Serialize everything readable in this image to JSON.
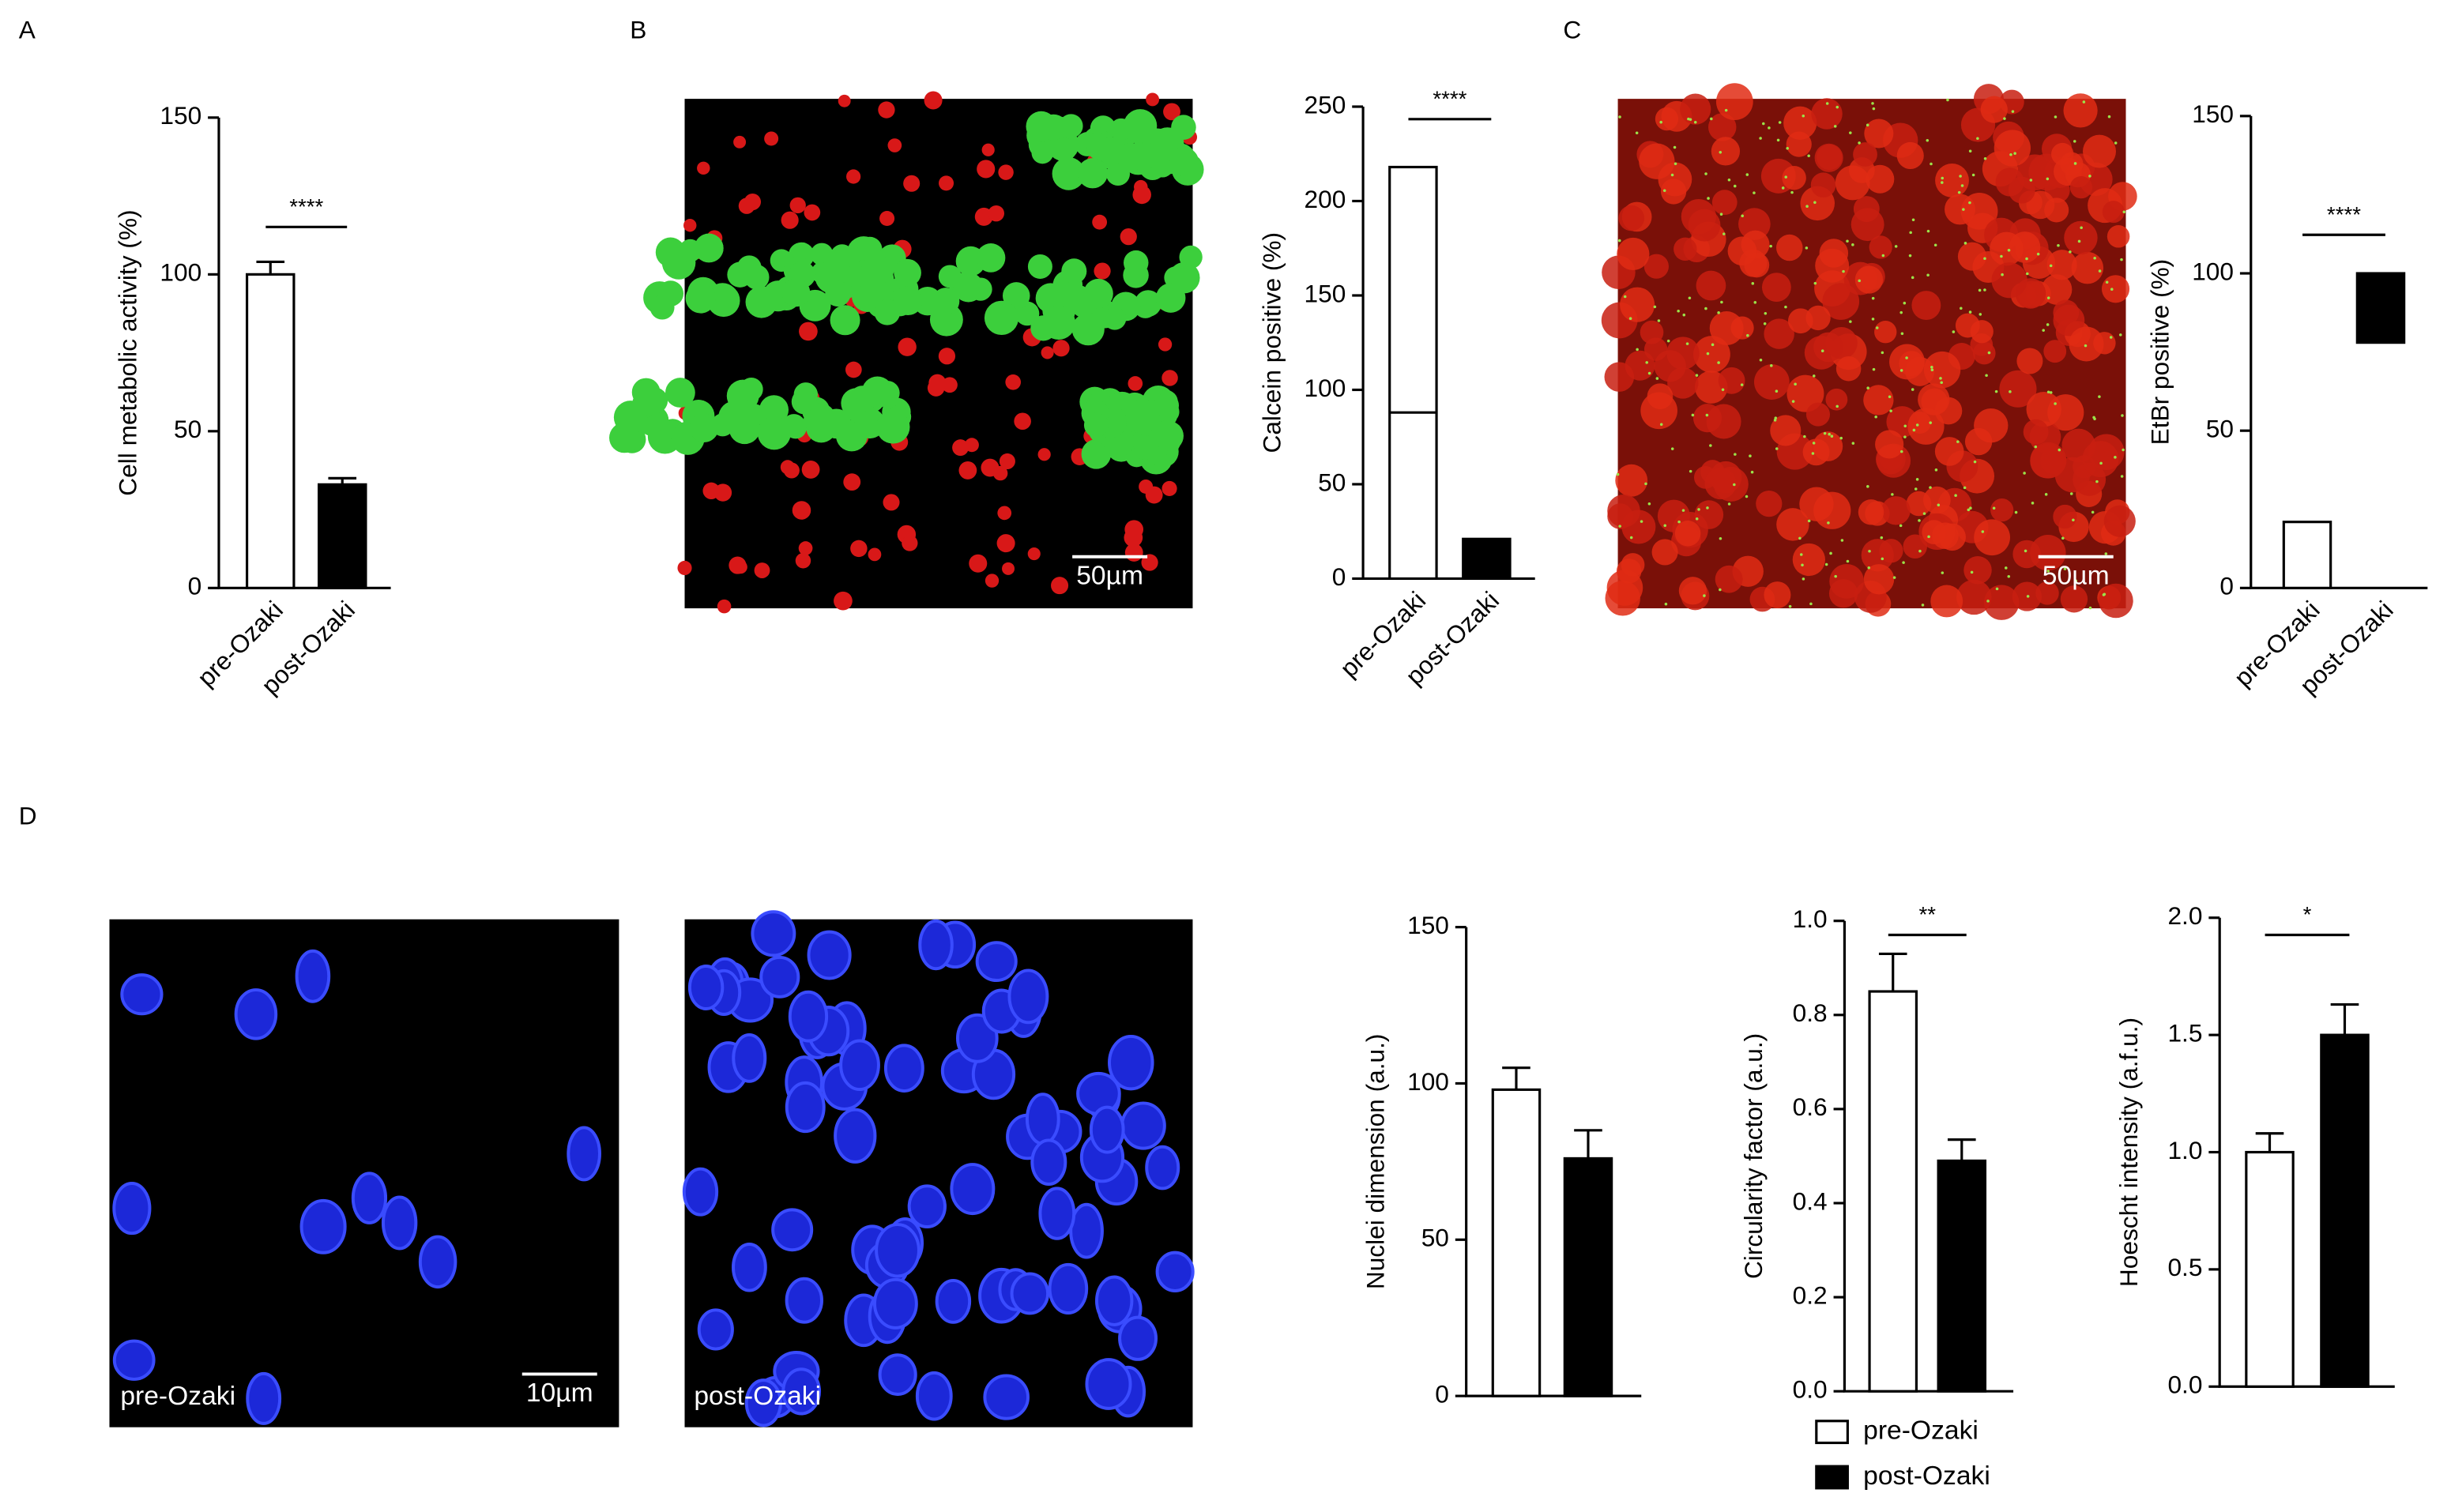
{
  "panels": [
    {
      "label": "A"
    },
    {
      "label": "B",
      "image_scale": "50µm"
    },
    {
      "label": "C",
      "image_scale": "50µm"
    },
    {
      "label": "D",
      "image_scale": "10µm",
      "image_captions": [
        "pre-Ozaki",
        "post-Ozaki"
      ]
    }
  ],
  "legend": {
    "entries": [
      {
        "label": "pre-Ozaki",
        "color": "#ffffff"
      },
      {
        "label": "post-Ozaki",
        "color": "#000000"
      }
    ]
  },
  "chart_data": [
    {
      "type": "bar",
      "y_label": "Cell metabolic activity (%)",
      "categories": [
        "pre-Ozaki",
        "post-Ozaki"
      ],
      "values": [
        100,
        33
      ],
      "errors": [
        4,
        2
      ],
      "colors": [
        "#ffffff",
        "#000000"
      ],
      "ylim": [
        0,
        150
      ],
      "yticks": [
        0,
        50,
        100,
        150
      ],
      "significance": "****"
    },
    {
      "type": "bar",
      "y_label": "Calcein positive (%)",
      "categories": [
        "pre-Ozaki",
        "post-Ozaki"
      ],
      "values": [
        218,
        21
      ],
      "low": [
        0,
        0
      ],
      "mid": [
        88,
        null
      ],
      "colors": [
        "#ffffff",
        "#000000"
      ],
      "ylim": [
        0,
        250
      ],
      "yticks": [
        0,
        50,
        100,
        150,
        200,
        250
      ],
      "significance": "****"
    },
    {
      "type": "bar",
      "y_label": "EtBr positive (%)",
      "categories": [
        "pre-Ozaki",
        "post-Ozaki"
      ],
      "values": [
        21,
        100
      ],
      "low": [
        0,
        78
      ],
      "colors": [
        "#ffffff",
        "#000000"
      ],
      "ylim": [
        0,
        150
      ],
      "yticks": [
        0,
        50,
        100,
        150
      ],
      "significance": "****"
    },
    {
      "type": "bar",
      "y_label": "Nuclei dimension (a.u.)",
      "values": [
        98,
        76
      ],
      "errors": [
        7,
        9
      ],
      "colors": [
        "#ffffff",
        "#000000"
      ],
      "ylim": [
        0,
        150
      ],
      "yticks": [
        0,
        50,
        100,
        150
      ]
    },
    {
      "type": "bar",
      "y_label": "Circularity factor (a.u.)",
      "values": [
        0.85,
        0.49
      ],
      "errors": [
        0.08,
        0.045
      ],
      "colors": [
        "#ffffff",
        "#000000"
      ],
      "ylim": [
        0,
        1.0
      ],
      "yticks": [
        {
          "value": 0,
          "label": "0.0"
        },
        0.2,
        0.4,
        0.6,
        0.8,
        {
          "value": 1,
          "label": "1.0"
        }
      ],
      "significance": "**"
    },
    {
      "type": "bar",
      "y_label": "Hoescht intensity (a.f.u.)",
      "values": [
        1.0,
        1.5
      ],
      "errors": [
        0.08,
        0.13
      ],
      "colors": [
        "#ffffff",
        "#000000"
      ],
      "ylim": [
        0,
        2.0
      ],
      "yticks": [
        {
          "value": 0,
          "label": "0.0"
        },
        0.5,
        {
          "value": 1,
          "label": "1.0"
        },
        1.5,
        {
          "value": 2,
          "label": "2.0"
        }
      ],
      "significance": "*"
    }
  ]
}
